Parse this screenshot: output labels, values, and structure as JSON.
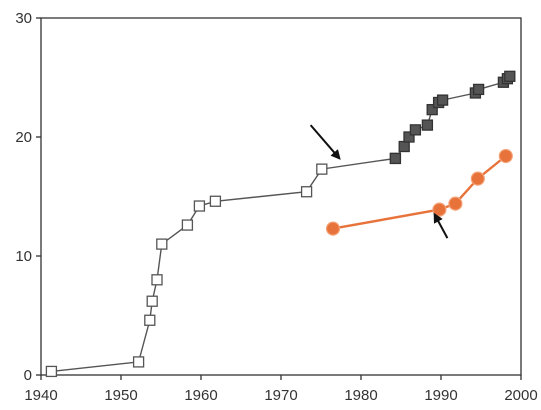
{
  "chart_data": {
    "type": "line",
    "xlim": [
      1940,
      2000
    ],
    "ylim": [
      0,
      30
    ],
    "x_ticks": [
      1940,
      1950,
      1960,
      1970,
      1980,
      1990,
      2000
    ],
    "y_ticks": [
      0,
      10,
      20,
      30
    ],
    "grid": false,
    "series": [
      {
        "marker": "open-square",
        "color": "#555555",
        "points": [
          [
            1941.3,
            0.3
          ],
          [
            1952.2,
            1.1
          ],
          [
            1953.6,
            4.6
          ],
          [
            1953.9,
            6.2
          ],
          [
            1954.5,
            8.0
          ],
          [
            1955.1,
            11.0
          ],
          [
            1958.3,
            12.6
          ],
          [
            1959.8,
            14.2
          ],
          [
            1961.8,
            14.6
          ],
          [
            1973.2,
            15.4
          ],
          [
            1975.1,
            17.3
          ],
          [
            1984.3,
            18.2
          ]
        ]
      },
      {
        "marker": "filled-square",
        "color": "#555555",
        "points": [
          [
            1984.3,
            18.2
          ],
          [
            1985.4,
            19.2
          ],
          [
            1986.0,
            20.0
          ],
          [
            1986.8,
            20.6
          ],
          [
            1988.3,
            21.0
          ],
          [
            1988.9,
            22.3
          ],
          [
            1989.7,
            22.9
          ],
          [
            1990.2,
            23.1
          ],
          [
            1994.3,
            23.7
          ],
          [
            1994.7,
            24.0
          ],
          [
            1997.8,
            24.6
          ],
          [
            1998.3,
            24.9
          ],
          [
            1998.6,
            25.1
          ]
        ]
      },
      {
        "marker": "filled-circle",
        "color": "#e8733a",
        "points": [
          [
            1976.5,
            12.3
          ],
          [
            1989.8,
            13.9
          ],
          [
            1991.8,
            14.4
          ],
          [
            1994.6,
            16.5
          ],
          [
            1998.1,
            18.4
          ]
        ]
      }
    ],
    "annotations": [
      {
        "type": "arrow",
        "from": [
          1973.7,
          21.0
        ],
        "to": [
          1977.3,
          18.2
        ]
      },
      {
        "type": "arrow",
        "from": [
          1990.8,
          11.5
        ],
        "to": [
          1989.2,
          13.5
        ]
      }
    ]
  }
}
